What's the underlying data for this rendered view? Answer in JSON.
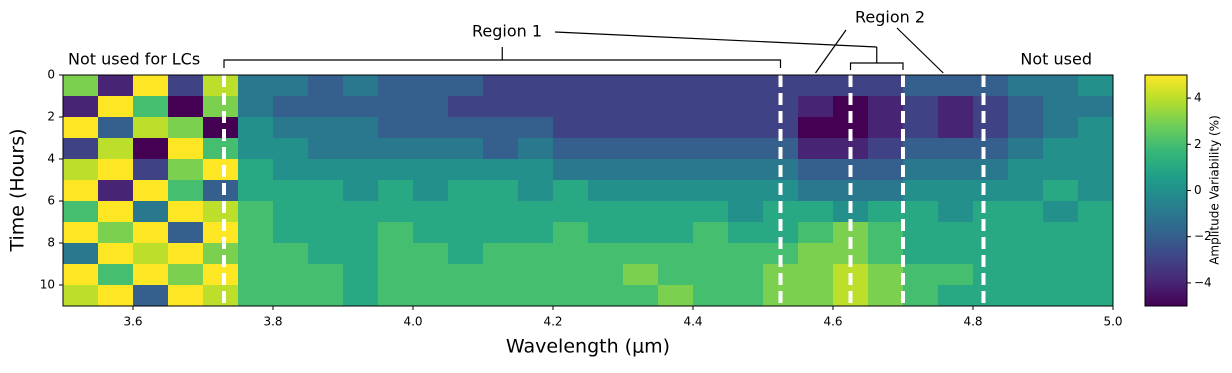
{
  "chart_data": {
    "type": "heatmap",
    "xlabel": "Wavelength (μm)",
    "ylabel": "Time (Hours)",
    "colorbar_label": "Amplitude Variability (%)",
    "colormap": "viridis",
    "xlim": [
      3.5,
      5.0
    ],
    "ylim": [
      11,
      0
    ],
    "xticks": [
      3.6,
      3.8,
      {
        "value": 4.0,
        "label": "4.0"
      },
      4.2,
      4.4,
      4.6,
      4.8,
      {
        "value": 5.0,
        "label": "5.0"
      }
    ],
    "yticks": [
      0,
      2,
      4,
      6,
      8,
      10
    ],
    "clim": [
      -5,
      5
    ],
    "cticks": [
      {
        "value": -4,
        "label": "−4"
      },
      {
        "value": -2,
        "label": "−2"
      },
      0,
      2,
      4
    ],
    "vlines": [
      3.73,
      4.525,
      4.625,
      4.7,
      4.815
    ],
    "annotations": [
      "Not used for LCs",
      "Region 1",
      "Region 2",
      "Not used"
    ],
    "x_edges": [
      3.5,
      3.55,
      3.6,
      3.65,
      3.7,
      3.75,
      3.8,
      3.85,
      3.9,
      3.95,
      4.0,
      4.05,
      4.1,
      4.15,
      4.2,
      4.25,
      4.3,
      4.35,
      4.4,
      4.45,
      4.5,
      4.55,
      4.6,
      4.65,
      4.7,
      4.75,
      4.8,
      4.85,
      4.9,
      4.95,
      5.0
    ],
    "y_edges": [
      0,
      1,
      2,
      3,
      4,
      5,
      6,
      7,
      8,
      9,
      10,
      11
    ],
    "z": [
      [
        3,
        -4,
        5,
        -3,
        4,
        -1,
        -1,
        -2,
        -1,
        -2,
        -2,
        -2,
        -3,
        -3,
        -3,
        -3,
        -3,
        -3,
        -3,
        -3,
        -3,
        -3,
        -3,
        -3,
        -2,
        -2,
        -2,
        -1,
        -1,
        0
      ],
      [
        -4,
        5,
        2,
        -5,
        3,
        -1,
        -2,
        -2,
        -2,
        -2,
        -2,
        -3,
        -3,
        -3,
        -3,
        -3,
        -3,
        -3,
        -3,
        -3,
        -3,
        -4,
        -5,
        -4,
        -3,
        -4,
        -3,
        -2,
        -1,
        -1
      ],
      [
        5,
        -2,
        4,
        3,
        -5,
        0,
        -1,
        -1,
        -1,
        -2,
        -2,
        -2,
        -2,
        -2,
        -3,
        -3,
        -3,
        -3,
        -3,
        -3,
        -3,
        -5,
        -5,
        -4,
        -3,
        -4,
        -3,
        -2,
        -1,
        0
      ],
      [
        -3,
        4,
        -5,
        5,
        2,
        0,
        0,
        -1,
        -1,
        -1,
        -1,
        -1,
        -2,
        -1,
        -2,
        -2,
        -2,
        -2,
        -2,
        -2,
        -2,
        -4,
        -4,
        -3,
        -2,
        -2,
        -2,
        -1,
        0,
        0
      ],
      [
        4,
        5,
        -3,
        3,
        5,
        1,
        0,
        0,
        0,
        0,
        0,
        0,
        0,
        0,
        -1,
        -1,
        -1,
        -1,
        -1,
        -1,
        -1,
        -2,
        -2,
        -2,
        -1,
        -1,
        -1,
        0,
        0,
        0
      ],
      [
        5,
        -4,
        5,
        2,
        -2,
        1,
        1,
        1,
        0,
        1,
        0,
        1,
        1,
        0,
        1,
        0,
        0,
        0,
        0,
        0,
        0,
        -1,
        -1,
        -1,
        0,
        0,
        0,
        0,
        1,
        0
      ],
      [
        2,
        5,
        -1,
        5,
        4,
        2,
        1,
        1,
        1,
        1,
        1,
        1,
        1,
        1,
        1,
        1,
        1,
        1,
        1,
        0,
        1,
        1,
        0,
        1,
        1,
        0,
        1,
        1,
        0,
        1
      ],
      [
        5,
        3,
        5,
        -2,
        5,
        2,
        1,
        1,
        1,
        2,
        1,
        1,
        1,
        1,
        2,
        1,
        1,
        1,
        2,
        1,
        1,
        2,
        3,
        2,
        1,
        1,
        1,
        1,
        1,
        1
      ],
      [
        -1,
        5,
        4,
        5,
        3,
        2,
        2,
        1,
        1,
        2,
        2,
        1,
        2,
        2,
        2,
        2,
        2,
        2,
        2,
        2,
        2,
        3,
        3,
        2,
        1,
        1,
        1,
        1,
        1,
        1
      ],
      [
        5,
        2,
        5,
        3,
        5,
        2,
        2,
        2,
        1,
        2,
        2,
        2,
        2,
        2,
        2,
        2,
        3,
        2,
        2,
        2,
        3,
        3,
        4,
        3,
        2,
        2,
        1,
        1,
        1,
        1
      ],
      [
        4,
        5,
        -2,
        5,
        4,
        2,
        2,
        2,
        1,
        2,
        2,
        2,
        2,
        2,
        2,
        2,
        2,
        3,
        2,
        2,
        3,
        3,
        4,
        3,
        2,
        1,
        1,
        1,
        1,
        1
      ]
    ]
  }
}
